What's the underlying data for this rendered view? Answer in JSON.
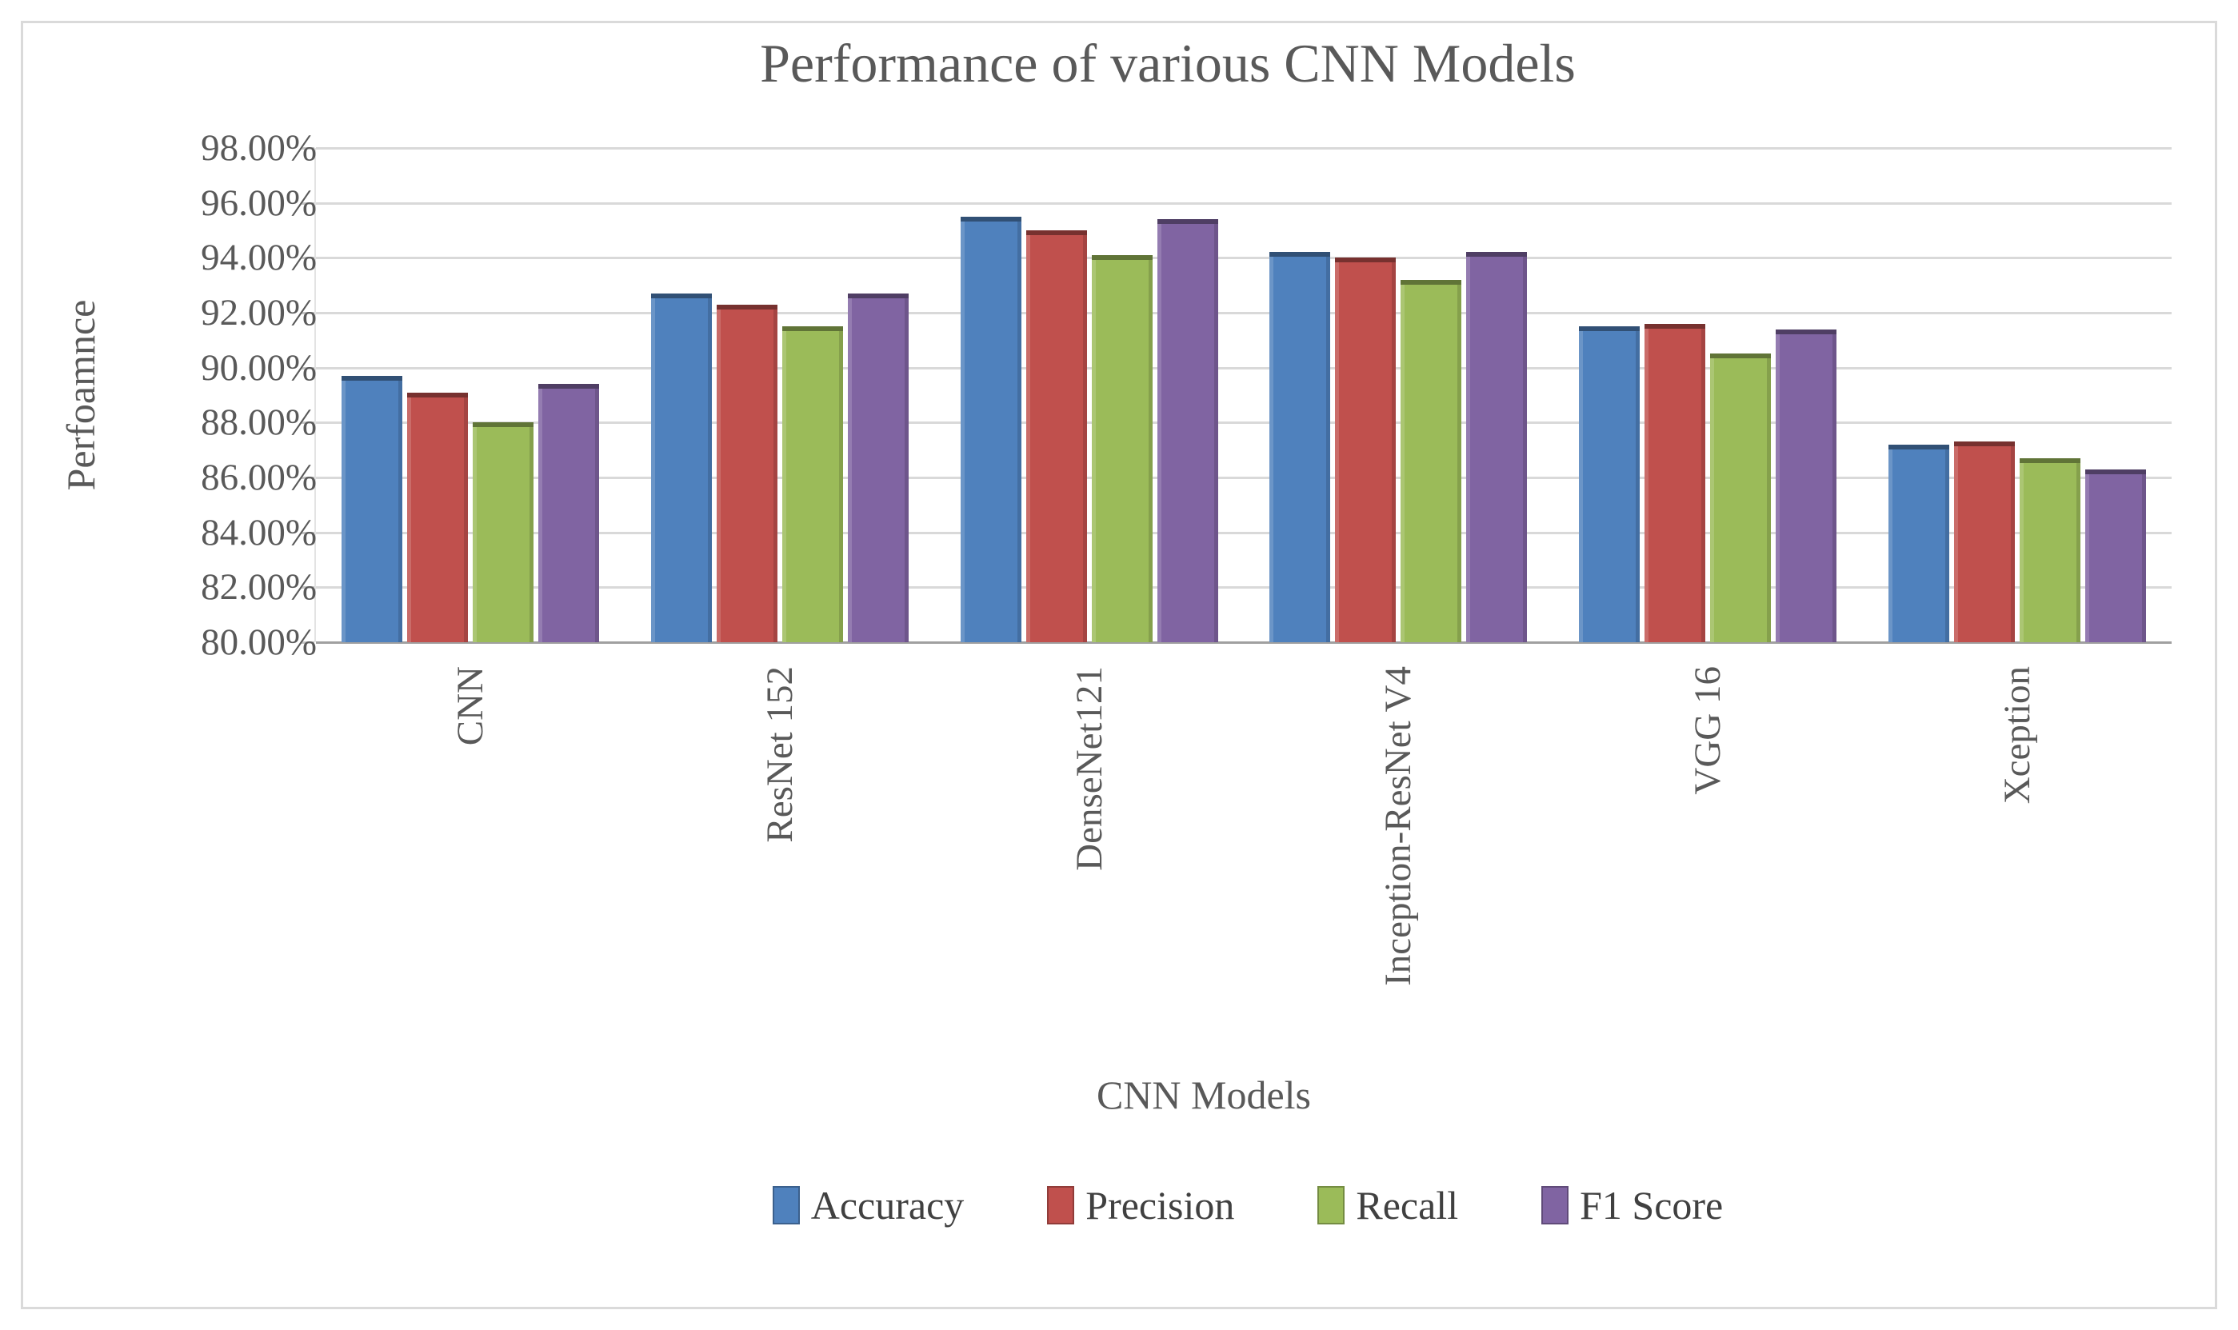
{
  "chart_data": {
    "type": "bar",
    "title": "Performance of various CNN Models",
    "xlabel": "CNN Models",
    "ylabel": "Perfoamnce",
    "categories": [
      "CNN",
      "ResNet 152",
      "DenseNet121",
      "Inception-ResNet V4",
      "VGG 16",
      "Xception"
    ],
    "series": [
      {
        "name": "Accuracy",
        "color": "#4F81BD",
        "values": [
          89.7,
          92.7,
          95.5,
          94.2,
          91.5,
          87.2
        ]
      },
      {
        "name": "Precision",
        "color": "#C0504D",
        "values": [
          89.1,
          92.3,
          95.0,
          94.0,
          91.6,
          87.3
        ]
      },
      {
        "name": "Recall",
        "color": "#9BBB59",
        "values": [
          88.0,
          91.5,
          94.1,
          93.2,
          90.5,
          86.7
        ]
      },
      {
        "name": "F1 Score",
        "color": "#8064A2",
        "values": [
          89.4,
          92.7,
          95.4,
          94.2,
          91.4,
          86.3
        ]
      }
    ],
    "ylim": [
      80,
      98
    ],
    "ytick_step": 2,
    "yticks": [
      "98.00%",
      "96.00%",
      "94.00%",
      "92.00%",
      "90.00%",
      "88.00%",
      "86.00%",
      "84.00%",
      "82.00%",
      "80.00%"
    ],
    "grid": true,
    "legend_position": "bottom",
    "gridline_color": "#d9d9d9",
    "text_color": "#595959"
  }
}
